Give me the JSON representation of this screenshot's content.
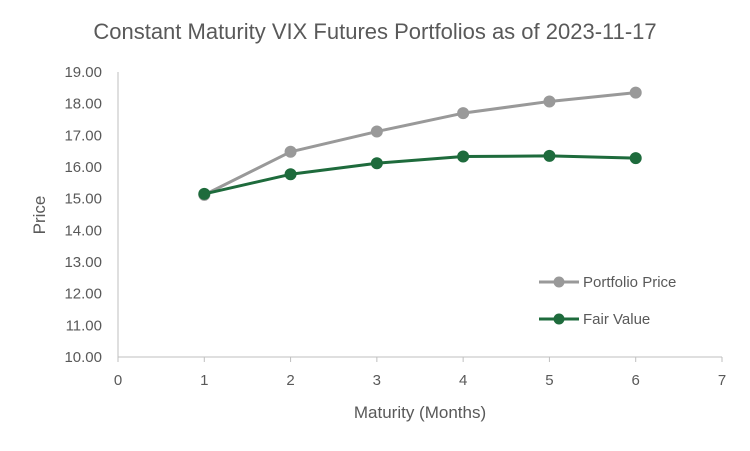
{
  "chart_data": {
    "type": "scatter",
    "title": "Constant Maturity VIX Futures Portfolios as of 2023-11-17",
    "xlabel": "Maturity (Months)",
    "ylabel": "Price",
    "xlim": [
      0,
      7
    ],
    "ylim": [
      10,
      19
    ],
    "x_ticks": [
      "0",
      "1",
      "2",
      "3",
      "4",
      "5",
      "6",
      "7"
    ],
    "y_ticks": [
      "10.00",
      "11.00",
      "12.00",
      "13.00",
      "14.00",
      "15.00",
      "16.00",
      "17.00",
      "18.00",
      "19.00"
    ],
    "grid": false,
    "legend_position": "right",
    "series": [
      {
        "name": "Portfolio Price",
        "color": "#999999",
        "x": [
          1,
          2,
          3,
          4,
          5,
          6
        ],
        "y": [
          15.12,
          16.48,
          17.12,
          17.7,
          18.07,
          18.35
        ]
      },
      {
        "name": "Fair Value",
        "color": "#1e6b3c",
        "x": [
          1,
          2,
          3,
          4,
          5,
          6
        ],
        "y": [
          15.15,
          15.77,
          16.12,
          16.33,
          16.35,
          16.28
        ]
      }
    ]
  }
}
